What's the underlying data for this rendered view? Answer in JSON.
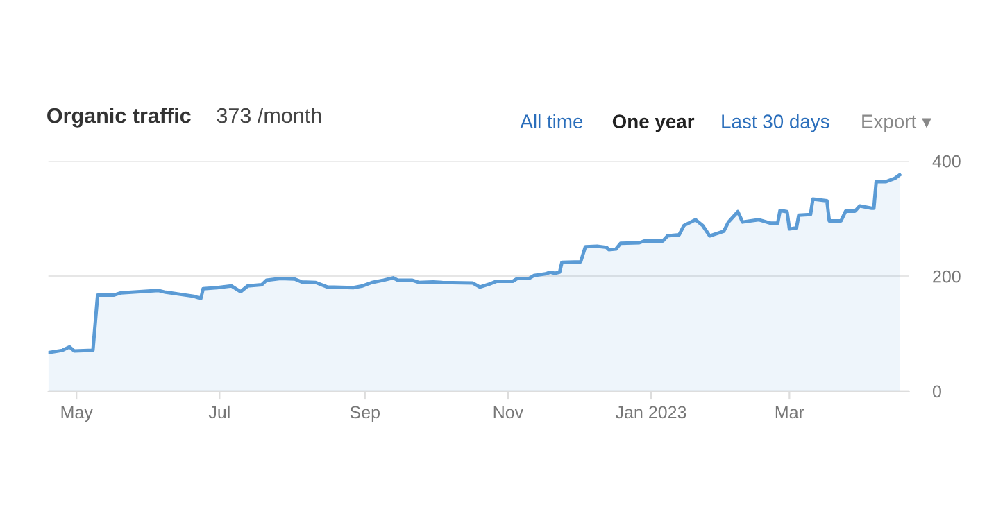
{
  "chart_data": {
    "type": "area",
    "title": "Organic traffic",
    "subtitle": "373 /month",
    "annotations": [
      "All time",
      "One year",
      "Last 30 days",
      "Export ▾"
    ],
    "x": [
      "2022-04-19",
      "2022-04-25",
      "2022-04-28",
      "2022-04-30",
      "2022-05-08",
      "2022-05-10",
      "2022-05-17",
      "2022-05-20",
      "2022-05-28",
      "2022-06-05",
      "2022-06-08",
      "2022-06-20",
      "2022-06-23",
      "2022-06-24",
      "2022-06-30",
      "2022-07-06",
      "2022-07-10",
      "2022-07-13",
      "2022-07-19",
      "2022-07-21",
      "2022-07-27",
      "2022-08-02",
      "2022-08-05",
      "2022-08-11",
      "2022-08-16",
      "2022-08-27",
      "2022-08-31",
      "2022-09-04",
      "2022-09-09",
      "2022-09-13",
      "2022-09-15",
      "2022-09-21",
      "2022-09-24",
      "2022-09-30",
      "2022-10-04",
      "2022-10-17",
      "2022-10-20",
      "2022-10-24",
      "2022-10-27",
      "2022-11-03",
      "2022-11-05",
      "2022-11-10",
      "2022-11-12",
      "2022-11-17",
      "2022-11-19",
      "2022-11-21",
      "2022-11-23",
      "2022-11-24",
      "2022-12-02",
      "2022-12-04",
      "2022-12-09",
      "2022-12-13",
      "2022-12-14",
      "2022-12-17",
      "2022-12-19",
      "2022-12-27",
      "2022-12-29",
      "2023-01-06",
      "2023-01-08",
      "2023-01-13",
      "2023-01-15",
      "2023-01-20",
      "2023-01-23",
      "2023-01-26",
      "2023-02-01",
      "2023-02-03",
      "2023-02-07",
      "2023-02-09",
      "2023-02-16",
      "2023-02-21",
      "2023-02-24",
      "2023-02-25",
      "2023-02-28",
      "2023-03-01",
      "2023-03-04",
      "2023-03-05",
      "2023-03-10",
      "2023-03-11",
      "2023-03-17",
      "2023-03-18",
      "2023-03-23",
      "2023-03-25",
      "2023-03-29",
      "2023-03-31",
      "2023-04-05",
      "2023-04-06",
      "2023-04-07",
      "2023-04-11",
      "2023-04-15",
      "2023-04-17"
    ],
    "series": [
      {
        "color": "#5b9bd5",
        "values": [
          67,
          71,
          77,
          70,
          71,
          167,
          167,
          171,
          173,
          175,
          172,
          165,
          161,
          178,
          180,
          183,
          173,
          183,
          185,
          193,
          196,
          195,
          190,
          189,
          181,
          180,
          183,
          189,
          193,
          197,
          193,
          193,
          189,
          190,
          189,
          188,
          181,
          186,
          191,
          191,
          196,
          196,
          201,
          204,
          207,
          205,
          207,
          224,
          225,
          251,
          252,
          250,
          246,
          247,
          257,
          258,
          261,
          261,
          270,
          272,
          288,
          298,
          288,
          270,
          278,
          294,
          312,
          294,
          298,
          292,
          292,
          314,
          312,
          282,
          284,
          306,
          307,
          334,
          331,
          296,
          296,
          313,
          313,
          322,
          318,
          318,
          364,
          364,
          370,
          376
        ]
      }
    ],
    "xlim": [
      "2022-04-19",
      "2023-04-21"
    ],
    "xticks": [
      {
        "value": "2022-05-01",
        "label": "May"
      },
      {
        "value": "2022-07-01",
        "label": "Jul"
      },
      {
        "value": "2022-09-01",
        "label": "Sep"
      },
      {
        "value": "2022-11-01",
        "label": "Nov"
      },
      {
        "value": "2023-01-01",
        "label": "Jan 2023"
      },
      {
        "value": "2023-03-01",
        "label": "Mar"
      }
    ],
    "ylim": [
      0,
      400
    ],
    "yticks": [
      0,
      200,
      400
    ],
    "grid": "y",
    "legend": false
  }
}
